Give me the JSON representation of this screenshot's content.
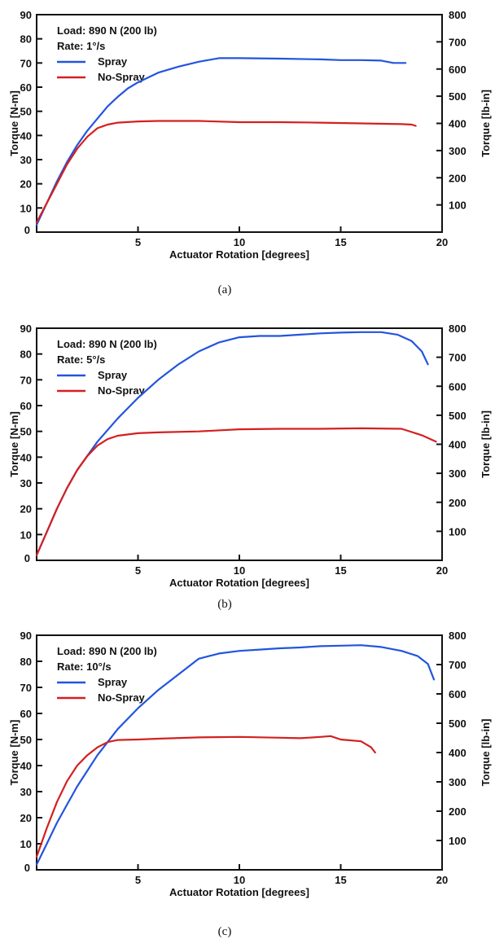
{
  "chart_data": [
    {
      "type": "line",
      "caption": "(a)",
      "xlabel": "Actuator Rotation [degrees]",
      "ylabel": "Torque [N-m]",
      "y2label": "Torque [lb-in]",
      "xlim": [
        0,
        20
      ],
      "ylim": [
        0,
        90
      ],
      "y2lim": [
        0,
        800
      ],
      "xticks": [
        0,
        5,
        10,
        15,
        20
      ],
      "yticks": [
        10,
        20,
        30,
        40,
        50,
        60,
        70,
        80,
        90
      ],
      "y2ticks": [
        100,
        200,
        300,
        400,
        500,
        600,
        700,
        800
      ],
      "zero_label": "0",
      "annotations": [
        "Load: 890 N (200 lb)",
        "Rate: 1°/s"
      ],
      "legend_position": "top-left",
      "grid": false,
      "series": [
        {
          "name": "Spray",
          "color": "#2255dd",
          "x": [
            0,
            0.5,
            1,
            1.5,
            2,
            2.5,
            3,
            3.5,
            4,
            4.5,
            5,
            6,
            7,
            8,
            9,
            10,
            12,
            14,
            15,
            16,
            17,
            17.6,
            18.2
          ],
          "y": [
            3,
            12,
            21,
            29,
            36,
            42,
            47,
            52,
            56,
            59.5,
            62,
            66,
            68.5,
            70.5,
            72,
            72,
            71.8,
            71.5,
            71.2,
            71.2,
            71,
            70,
            70
          ]
        },
        {
          "name": "No-Spray",
          "color": "#d42020",
          "x": [
            0,
            0.5,
            1,
            1.5,
            2,
            2.5,
            3,
            3.5,
            4,
            5,
            6,
            8,
            10,
            12,
            14,
            16,
            18,
            18.5,
            18.7
          ],
          "y": [
            4,
            12,
            20,
            28,
            34.5,
            39.5,
            43,
            44.5,
            45.3,
            45.8,
            46,
            46,
            45.5,
            45.5,
            45.3,
            45,
            44.7,
            44.5,
            44
          ]
        }
      ]
    },
    {
      "type": "line",
      "caption": "(b)",
      "xlabel": "Actuator Rotation [degrees]",
      "ylabel": "Torque [N-m]",
      "y2label": "Torque [lb-in]",
      "xlim": [
        0,
        20
      ],
      "ylim": [
        0,
        90
      ],
      "y2lim": [
        0,
        800
      ],
      "xticks": [
        0,
        5,
        10,
        15,
        20
      ],
      "yticks": [
        10,
        20,
        30,
        40,
        50,
        60,
        70,
        80,
        90
      ],
      "y2ticks": [
        100,
        200,
        300,
        400,
        500,
        600,
        700,
        800
      ],
      "zero_label": "0",
      "annotations": [
        "Load: 890 N (200 lb)",
        "Rate: 5°/s"
      ],
      "legend_position": "top-left",
      "grid": false,
      "series": [
        {
          "name": "Spray",
          "color": "#2255dd",
          "x": [
            0,
            0.5,
            1,
            1.5,
            2,
            3,
            4,
            5,
            6,
            7,
            8,
            9,
            10,
            11,
            12,
            13,
            14,
            15,
            16,
            17,
            17.8,
            18.5,
            19,
            19.3
          ],
          "y": [
            2,
            11,
            20,
            28,
            35,
            46,
            55,
            63,
            70,
            76,
            81,
            84.5,
            86.5,
            87,
            87,
            87.5,
            88,
            88.3,
            88.5,
            88.5,
            87.5,
            85,
            81,
            76
          ]
        },
        {
          "name": "No-Spray",
          "color": "#d42020",
          "x": [
            0,
            0.5,
            1,
            1.5,
            2,
            2.5,
            3,
            3.5,
            4,
            5,
            6,
            8,
            10,
            12,
            14,
            16,
            18,
            19,
            19.7
          ],
          "y": [
            2,
            11,
            20,
            28,
            35,
            40.5,
            44.5,
            47,
            48.3,
            49.3,
            49.6,
            50,
            50.8,
            51,
            51,
            51.2,
            51,
            48.5,
            46
          ]
        }
      ]
    },
    {
      "type": "line",
      "caption": "(c)",
      "xlabel": "Actuator Rotation [degrees]",
      "ylabel": "Torque [N-m]",
      "y2label": "Torque [lb-in]",
      "xlim": [
        0,
        20
      ],
      "ylim": [
        0,
        90
      ],
      "y2lim": [
        0,
        800
      ],
      "xticks": [
        0,
        5,
        10,
        15,
        20
      ],
      "yticks": [
        10,
        20,
        30,
        40,
        50,
        60,
        70,
        80,
        90
      ],
      "y2ticks": [
        100,
        200,
        300,
        400,
        500,
        600,
        700,
        800
      ],
      "zero_label": "0",
      "annotations": [
        "Load: 890 N (200 lb)",
        "Rate: 10°/s"
      ],
      "legend_position": "top-left",
      "grid": false,
      "series": [
        {
          "name": "Spray",
          "color": "#2255dd",
          "x": [
            0,
            0.5,
            1,
            1.5,
            2,
            3,
            4,
            5,
            6,
            7,
            8,
            9,
            10,
            11,
            12,
            13,
            14,
            15,
            16,
            17,
            18,
            18.8,
            19.3,
            19.6
          ],
          "y": [
            2,
            10,
            18,
            25,
            32,
            44,
            54,
            62,
            69,
            75,
            81,
            83,
            84,
            84.5,
            85,
            85.3,
            85.8,
            86,
            86.2,
            85.5,
            84,
            82,
            79,
            73
          ]
        },
        {
          "name": "No-Spray",
          "color": "#d42020",
          "x": [
            0,
            0.5,
            1,
            1.5,
            2,
            2.5,
            3,
            3.5,
            4,
            5,
            6,
            8,
            10,
            12,
            13,
            14,
            14.5,
            15,
            16,
            16.5,
            16.7
          ],
          "y": [
            5,
            16,
            26,
            34,
            40,
            44,
            47,
            49,
            49.8,
            50,
            50.3,
            50.8,
            51,
            50.7,
            50.5,
            51,
            51.3,
            50,
            49.3,
            47,
            45
          ]
        }
      ]
    }
  ]
}
